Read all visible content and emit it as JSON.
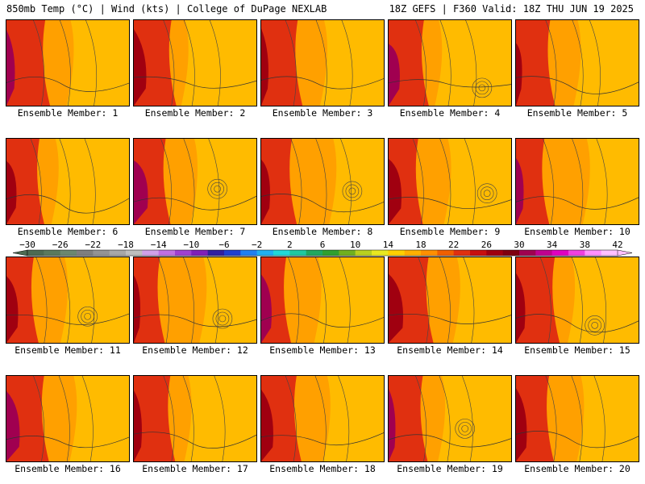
{
  "header": {
    "left": "850mb Temp (°C) | Wind (kts) | College of DuPage NEXLAB",
    "right": "18Z GEFS | F360 Valid: 18Z THU JUN 19 2025"
  },
  "panels": [
    {
      "label": "Ensemble Member: 1"
    },
    {
      "label": "Ensemble Member: 2"
    },
    {
      "label": "Ensemble Member: 3"
    },
    {
      "label": "Ensemble Member: 4"
    },
    {
      "label": "Ensemble Member: 5"
    },
    {
      "label": "Ensemble Member: 6"
    },
    {
      "label": "Ensemble Member: 7"
    },
    {
      "label": "Ensemble Member: 8"
    },
    {
      "label": "Ensemble Member: 9"
    },
    {
      "label": "Ensemble Member: 10"
    },
    {
      "label": "Ensemble Member: 11"
    },
    {
      "label": "Ensemble Member: 12"
    },
    {
      "label": "Ensemble Member: 13"
    },
    {
      "label": "Ensemble Member: 14"
    },
    {
      "label": "Ensemble Member: 15"
    },
    {
      "label": "Ensemble Member: 16"
    },
    {
      "label": "Ensemble Member: 17"
    },
    {
      "label": "Ensemble Member: 18"
    },
    {
      "label": "Ensemble Member: 19"
    },
    {
      "label": "Ensemble Member: 20"
    }
  ],
  "colorbar": {
    "ticks": [
      "−30",
      "−26",
      "−22",
      "−18",
      "−14",
      "−10",
      "−6",
      "−2",
      "2",
      "6",
      "10",
      "14",
      "18",
      "22",
      "26",
      "30",
      "34",
      "38",
      "42"
    ],
    "colors": [
      "#4d6b52",
      "#5a7a5e",
      "#6c8870",
      "#7f7f7f",
      "#949494",
      "#a8a8a8",
      "#bebebe",
      "#d0a0e8",
      "#c070e0",
      "#a040d0",
      "#8020b8",
      "#3020a0",
      "#2040d0",
      "#2080f0",
      "#20b0f0",
      "#20d8d8",
      "#20c8a0",
      "#20a860",
      "#30a030",
      "#70b020",
      "#b8d020",
      "#e8e820",
      "#ffd000",
      "#ffb000",
      "#ff9000",
      "#f06000",
      "#e03010",
      "#c81010",
      "#a00010",
      "#800010",
      "#a00050",
      "#c00090",
      "#e000c0",
      "#f040e0",
      "#ff90ff",
      "#ffc0ff"
    ]
  }
}
